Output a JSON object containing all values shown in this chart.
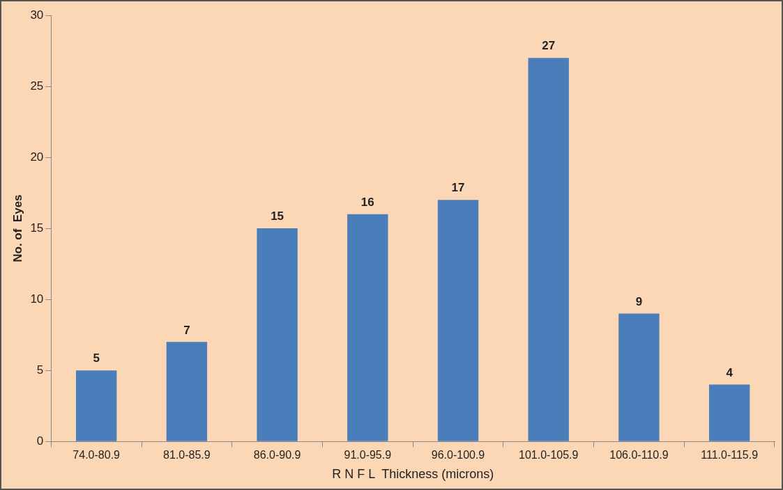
{
  "chart_data": {
    "type": "bar",
    "xlabel": "R N F L  Thickness (microns)",
    "ylabel": "No. of  Eyes",
    "categories": [
      "74.0-80.9",
      "81.0-85.9",
      "86.0-90.9",
      "91.0-95.9",
      "96.0-100.9",
      "101.0-105.9",
      "106.0-110.9",
      "111.0-115.9"
    ],
    "values": [
      5,
      7,
      15,
      16,
      17,
      27,
      9,
      4
    ],
    "color": "#4a7ebb",
    "ylim": [
      0,
      30
    ],
    "yticks": [
      0,
      5,
      10,
      15,
      20,
      25,
      30
    ],
    "data_labels": true
  }
}
